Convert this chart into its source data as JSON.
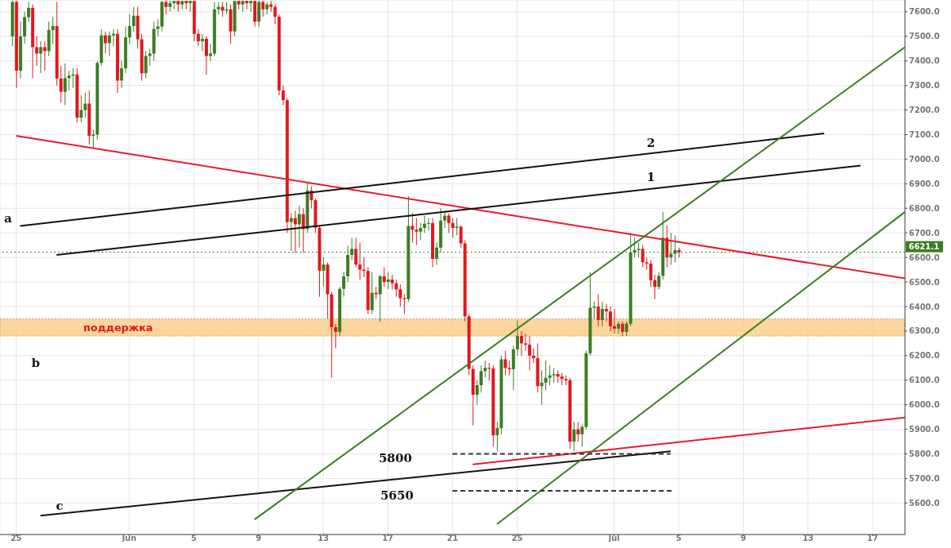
{
  "chart_data": {
    "type": "candlestick",
    "x": [
      "--05-24T18:00",
      "--05-25T00:00",
      "--05-25T06:00",
      "--05-25T12:00",
      "--05-25T18:00",
      "--05-26T00:00",
      "--05-26T06:00",
      "--05-26T12:00",
      "--05-26T18:00",
      "--05-27T00:00",
      "--05-27T06:00",
      "--05-27T12:00",
      "--05-27T18:00",
      "--05-28T00:00",
      "--05-28T06:00",
      "--05-28T12:00",
      "--05-28T18:00",
      "--05-29T00:00",
      "--05-29T06:00",
      "--05-29T12:00",
      "--05-29T18:00",
      "--05-30T00:00",
      "--05-30T06:00",
      "--05-30T12:00",
      "--05-30T18:00",
      "--05-31T00:00",
      "--05-31T06:00",
      "--05-31T12:00",
      "--05-31T18:00",
      "--06-01T00:00",
      "--06-01T06:00",
      "--06-01T12:00",
      "--06-01T18:00",
      "--06-02T00:00",
      "--06-02T06:00",
      "--06-02T12:00",
      "--06-02T18:00",
      "--06-03T00:00",
      "--06-03T06:00",
      "--06-03T12:00",
      "--06-03T18:00",
      "--06-04T00:00",
      "--06-04T06:00",
      "--06-04T12:00",
      "--06-04T18:00",
      "--06-05T00:00",
      "--06-05T06:00",
      "--06-05T12:00",
      "--06-05T18:00",
      "--06-06T00:00",
      "--06-06T06:00",
      "--06-06T12:00",
      "--06-06T18:00",
      "--06-07T00:00",
      "--06-07T06:00",
      "--06-07T12:00",
      "--06-07T18:00",
      "--06-08T00:00",
      "--06-08T06:00",
      "--06-08T12:00",
      "--06-08T18:00",
      "--06-09T00:00",
      "--06-09T06:00",
      "--06-09T12:00",
      "--06-09T18:00",
      "--06-10T00:00",
      "--06-10T06:00",
      "--06-10T12:00",
      "--06-10T18:00",
      "--06-11T00:00",
      "--06-11T06:00",
      "--06-11T12:00",
      "--06-11T18:00",
      "--06-12T00:00",
      "--06-12T06:00",
      "--06-12T12:00",
      "--06-12T18:00",
      "--06-13T00:00",
      "--06-13T06:00",
      "--06-13T12:00",
      "--06-13T18:00",
      "--06-14T00:00",
      "--06-14T06:00",
      "--06-14T12:00",
      "--06-14T18:00",
      "--06-15T00:00",
      "--06-15T06:00",
      "--06-15T12:00",
      "--06-15T18:00",
      "--06-16T00:00",
      "--06-16T06:00",
      "--06-16T12:00",
      "--06-16T18:00",
      "--06-17T00:00",
      "--06-17T06:00",
      "--06-17T12:00",
      "--06-17T18:00",
      "--06-18T00:00",
      "--06-18T06:00",
      "--06-18T12:00",
      "--06-18T18:00",
      "--06-19T00:00",
      "--06-19T06:00",
      "--06-19T12:00",
      "--06-19T18:00",
      "--06-20T00:00",
      "--06-20T06:00",
      "--06-20T12:00",
      "--06-20T18:00",
      "--06-21T00:00",
      "--06-21T06:00",
      "--06-21T12:00",
      "--06-21T18:00",
      "--06-22T00:00",
      "--06-22T06:00",
      "--06-22T12:00",
      "--06-22T18:00",
      "--06-23T00:00",
      "--06-23T06:00",
      "--06-23T12:00",
      "--06-23T18:00",
      "--06-24T00:00",
      "--06-24T06:00",
      "--06-24T12:00",
      "--06-24T18:00",
      "--06-25T00:00",
      "--06-25T06:00",
      "--06-25T12:00",
      "--06-25T18:00",
      "--06-26T00:00",
      "--06-26T06:00",
      "--06-26T12:00",
      "--06-26T18:00",
      "--06-27T00:00",
      "--06-27T06:00",
      "--06-27T12:00",
      "--06-27T18:00",
      "--06-28T00:00",
      "--06-28T06:00",
      "--06-28T12:00",
      "--06-28T18:00",
      "--06-29T00:00",
      "--06-29T06:00",
      "--06-29T12:00",
      "--06-29T18:00",
      "--06-30T00:00",
      "--06-30T06:00",
      "--06-30T12:00",
      "--06-30T18:00",
      "--07-01T00:00",
      "--07-01T06:00",
      "--07-01T12:00",
      "--07-01T18:00",
      "--07-02T00:00",
      "--07-02T06:00",
      "--07-02T12:00",
      "--07-02T18:00",
      "--07-03T00:00",
      "--07-03T06:00",
      "--07-03T12:00",
      "--07-03T18:00",
      "--07-04T00:00",
      "--07-04T06:00",
      "--07-04T12:00",
      "--07-04T18:00",
      "--07-05T00:00"
    ],
    "ohlc": [
      [
        7500,
        7645,
        7460,
        7640
      ],
      [
        7640,
        7645,
        7290,
        7360
      ],
      [
        7360,
        7560,
        7330,
        7500
      ],
      [
        7500,
        7600,
        7470,
        7578
      ],
      [
        7578,
        7640,
        7560,
        7616
      ],
      [
        7616,
        7630,
        7330,
        7456
      ],
      [
        7456,
        7500,
        7380,
        7430
      ],
      [
        7430,
        7480,
        7350,
        7456
      ],
      [
        7456,
        7480,
        7360,
        7440
      ],
      [
        7440,
        7560,
        7420,
        7526
      ],
      [
        7526,
        7580,
        7470,
        7542
      ],
      [
        7542,
        7640,
        7300,
        7328
      ],
      [
        7328,
        7380,
        7230,
        7274
      ],
      [
        7274,
        7390,
        7220,
        7330
      ],
      [
        7330,
        7360,
        7280,
        7340
      ],
      [
        7340,
        7370,
        7290,
        7345
      ],
      [
        7345,
        7370,
        7150,
        7169
      ],
      [
        7169,
        7260,
        7150,
        7200
      ],
      [
        7200,
        7270,
        7170,
        7226
      ],
      [
        7226,
        7280,
        7060,
        7095
      ],
      [
        7095,
        7120,
        7047,
        7100
      ],
      [
        7100,
        7400,
        7080,
        7392
      ],
      [
        7392,
        7530,
        7380,
        7504
      ],
      [
        7504,
        7520,
        7430,
        7472
      ],
      [
        7472,
        7520,
        7420,
        7504
      ],
      [
        7504,
        7530,
        7460,
        7510
      ],
      [
        7510,
        7530,
        7270,
        7320
      ],
      [
        7320,
        7400,
        7290,
        7370
      ],
      [
        7370,
        7540,
        7350,
        7496
      ],
      [
        7496,
        7590,
        7470,
        7542
      ],
      [
        7542,
        7620,
        7520,
        7584
      ],
      [
        7584,
        7620,
        7450,
        7488
      ],
      [
        7488,
        7510,
        7320,
        7350
      ],
      [
        7350,
        7440,
        7330,
        7420
      ],
      [
        7420,
        7450,
        7380,
        7430
      ],
      [
        7430,
        7560,
        7400,
        7530
      ],
      [
        7530,
        7570,
        7500,
        7540
      ],
      [
        7540,
        7645,
        7520,
        7640
      ],
      [
        7640,
        7645,
        7590,
        7620
      ],
      [
        7620,
        7645,
        7600,
        7635
      ],
      [
        7635,
        7645,
        7610,
        7644
      ],
      [
        7644,
        7645,
        7600,
        7630
      ],
      [
        7630,
        7645,
        7610,
        7644
      ],
      [
        7644,
        7645,
        7610,
        7635
      ],
      [
        7635,
        7645,
        7600,
        7644
      ],
      [
        7644,
        7645,
        7480,
        7510
      ],
      [
        7510,
        7530,
        7460,
        7480
      ],
      [
        7480,
        7510,
        7440,
        7490
      ],
      [
        7490,
        7500,
        7344,
        7420
      ],
      [
        7420,
        7470,
        7400,
        7430
      ],
      [
        7430,
        7640,
        7420,
        7610
      ],
      [
        7610,
        7640,
        7590,
        7620
      ],
      [
        7620,
        7640,
        7580,
        7605
      ],
      [
        7605,
        7640,
        7590,
        7610
      ],
      [
        7610,
        7630,
        7470,
        7520
      ],
      [
        7520,
        7645,
        7500,
        7644
      ],
      [
        7644,
        7645,
        7610,
        7630
      ],
      [
        7630,
        7645,
        7600,
        7644
      ],
      [
        7644,
        7645,
        7610,
        7635
      ],
      [
        7635,
        7645,
        7600,
        7644
      ],
      [
        7644,
        7645,
        7540,
        7560
      ],
      [
        7560,
        7645,
        7540,
        7640
      ],
      [
        7640,
        7645,
        7580,
        7610
      ],
      [
        7610,
        7640,
        7590,
        7630
      ],
      [
        7630,
        7645,
        7600,
        7620
      ],
      [
        7620,
        7630,
        7550,
        7580
      ],
      [
        7580,
        7590,
        7260,
        7280
      ],
      [
        7280,
        7300,
        7220,
        7240
      ],
      [
        7240,
        7250,
        6700,
        6744
      ],
      [
        6744,
        6780,
        6626,
        6760
      ],
      [
        6760,
        6790,
        6620,
        6735
      ],
      [
        6735,
        6810,
        6640,
        6776
      ],
      [
        6776,
        6800,
        6620,
        6715
      ],
      [
        6715,
        6903,
        6700,
        6872
      ],
      [
        6872,
        6890,
        6800,
        6833
      ],
      [
        6833,
        6840,
        6700,
        6721
      ],
      [
        6721,
        6730,
        6440,
        6546
      ],
      [
        6546,
        6600,
        6480,
        6571
      ],
      [
        6571,
        6580,
        6350,
        6450
      ],
      [
        6450,
        6460,
        6110,
        6316
      ],
      [
        6316,
        6330,
        6230,
        6297
      ],
      [
        6297,
        6480,
        6280,
        6472
      ],
      [
        6472,
        6540,
        6440,
        6523
      ],
      [
        6523,
        6648,
        6500,
        6610
      ],
      [
        6610,
        6680,
        6590,
        6635
      ],
      [
        6635,
        6680,
        6560,
        6571
      ],
      [
        6571,
        6660,
        6510,
        6550
      ],
      [
        6550,
        6600,
        6520,
        6545
      ],
      [
        6545,
        6560,
        6370,
        6386
      ],
      [
        6386,
        6540,
        6370,
        6456
      ],
      [
        6456,
        6480,
        6430,
        6450
      ],
      [
        6450,
        6530,
        6338,
        6523
      ],
      [
        6523,
        6560,
        6480,
        6500
      ],
      [
        6500,
        6540,
        6470,
        6510
      ],
      [
        6510,
        6530,
        6470,
        6495
      ],
      [
        6495,
        6510,
        6440,
        6470
      ],
      [
        6470,
        6490,
        6400,
        6434
      ],
      [
        6434,
        6450,
        6370,
        6430
      ],
      [
        6430,
        6849,
        6420,
        6728
      ],
      [
        6728,
        6780,
        6660,
        6713
      ],
      [
        6713,
        6760,
        6650,
        6705
      ],
      [
        6705,
        6740,
        6670,
        6720
      ],
      [
        6720,
        6770,
        6700,
        6737
      ],
      [
        6737,
        6760,
        6710,
        6740
      ],
      [
        6740,
        6760,
        6560,
        6594
      ],
      [
        6594,
        6660,
        6570,
        6640
      ],
      [
        6640,
        6800,
        6620,
        6750
      ],
      [
        6750,
        6790,
        6720,
        6770
      ],
      [
        6770,
        6780,
        6700,
        6740
      ],
      [
        6740,
        6760,
        6680,
        6720
      ],
      [
        6720,
        6760,
        6690,
        6725
      ],
      [
        6725,
        6730,
        6640,
        6657
      ],
      [
        6657,
        6670,
        6340,
        6360
      ],
      [
        6360,
        6370,
        6120,
        6146
      ],
      [
        6146,
        6160,
        5916,
        6041
      ],
      [
        6041,
        6100,
        6000,
        6080
      ],
      [
        6080,
        6160,
        6050,
        6137
      ],
      [
        6137,
        6180,
        6110,
        6150
      ],
      [
        6150,
        6170,
        6100,
        6148
      ],
      [
        6148,
        6160,
        5830,
        5876
      ],
      [
        5876,
        5930,
        5810,
        5905
      ],
      [
        5905,
        6200,
        5880,
        6185
      ],
      [
        6185,
        6220,
        6120,
        6150
      ],
      [
        6150,
        6180,
        6120,
        6145
      ],
      [
        6145,
        6240,
        6060,
        6226
      ],
      [
        6226,
        6344,
        6200,
        6280
      ],
      [
        6280,
        6300,
        6200,
        6250
      ],
      [
        6250,
        6290,
        6220,
        6245
      ],
      [
        6245,
        6280,
        6140,
        6200
      ],
      [
        6200,
        6230,
        6170,
        6190
      ],
      [
        6190,
        6250,
        6050,
        6076
      ],
      [
        6076,
        6140,
        6000,
        6090
      ],
      [
        6090,
        6180,
        6060,
        6110
      ],
      [
        6110,
        6160,
        6080,
        6120
      ],
      [
        6120,
        6150,
        6090,
        6125
      ],
      [
        6125,
        6140,
        6090,
        6115
      ],
      [
        6115,
        6130,
        6080,
        6105
      ],
      [
        6105,
        6120,
        6080,
        6100
      ],
      [
        6100,
        6110,
        5820,
        5850
      ],
      [
        5850,
        5930,
        5810,
        5900
      ],
      [
        5900,
        5930,
        5850,
        5880
      ],
      [
        5880,
        5920,
        5830,
        5910
      ],
      [
        5910,
        6220,
        5900,
        6210
      ],
      [
        6210,
        6539,
        6200,
        6395
      ],
      [
        6395,
        6420,
        6350,
        6400
      ],
      [
        6400,
        6450,
        6320,
        6345
      ],
      [
        6345,
        6420,
        6320,
        6390
      ],
      [
        6390,
        6410,
        6340,
        6380
      ],
      [
        6380,
        6400,
        6300,
        6320
      ],
      [
        6320,
        6390,
        6290,
        6310
      ],
      [
        6310,
        6340,
        6290,
        6330
      ],
      [
        6330,
        6340,
        6280,
        6297
      ],
      [
        6297,
        6340,
        6280,
        6330
      ],
      [
        6330,
        6700,
        6320,
        6620
      ],
      [
        6620,
        6680,
        6600,
        6630
      ],
      [
        6630,
        6660,
        6600,
        6635
      ],
      [
        6635,
        6650,
        6560,
        6580
      ],
      [
        6580,
        6600,
        6550,
        6575
      ],
      [
        6575,
        6590,
        6480,
        6507
      ],
      [
        6507,
        6530,
        6430,
        6480
      ],
      [
        6480,
        6540,
        6470,
        6525
      ],
      [
        6525,
        6785,
        6510,
        6680
      ],
      [
        6680,
        6730,
        6560,
        6600
      ],
      [
        6600,
        6700,
        6570,
        6615
      ],
      [
        6615,
        6690,
        6580,
        6630
      ],
      [
        6630,
        6640,
        6600,
        6621.1
      ]
    ],
    "series": [
      {
        "type": "line",
        "x": [
          "--05-25T00:00",
          "--07-19T00:00"
        ],
        "values": [
          7095,
          6515
        ],
        "color": "#e8192c"
      },
      {
        "type": "line",
        "x": [
          "--05-25T06:00",
          "--07-14T00:00"
        ],
        "values": [
          6728,
          7105
        ],
        "color": "#111111"
      },
      {
        "type": "line",
        "x": [
          "--05-27T12:00",
          "--07-16T06:00"
        ],
        "values": [
          6610,
          6974
        ],
        "color": "#111111"
      },
      {
        "type": "line",
        "x": [
          "--05-26T12:00",
          "--07-04T12:00"
        ],
        "values": [
          5549,
          5811
        ],
        "color": "#111111"
      },
      {
        "type": "line",
        "x": [
          "--06-22T06:00",
          "--07-19T00:00"
        ],
        "values": [
          5757,
          5948
        ],
        "color": "#e8192c"
      },
      {
        "type": "line",
        "x": [
          "--06-08T18:00",
          "--07-19T00:00"
        ],
        "values": [
          5533,
          7456
        ],
        "color": "#3b7d23"
      },
      {
        "type": "line",
        "x": [
          "--06-23T18:00",
          "--07-19T00:00"
        ],
        "values": [
          5514,
          6785
        ],
        "color": "#3b7d23"
      },
      {
        "type": "line",
        "x": [
          "--06-21T00:00",
          "--07-04T12:00"
        ],
        "values": [
          5800,
          5800
        ],
        "color": "#333333",
        "line_style": "dashed"
      },
      {
        "type": "line",
        "x": [
          "--06-21T00:00",
          "--07-04T18:00"
        ],
        "values": [
          5650,
          5650
        ],
        "color": "#333333",
        "line_style": "dashed"
      }
    ],
    "xlim": [
      "--05-24T00:00",
      "--07-19T00:00"
    ],
    "xticks": [
      {
        "value": "--05-25",
        "label": "25"
      },
      {
        "value": "--06-01",
        "label": "Jun"
      },
      {
        "value": "--06-05",
        "label": "5"
      },
      {
        "value": "--06-09",
        "label": "9"
      },
      {
        "value": "--06-13",
        "label": "13"
      },
      {
        "value": "--06-17",
        "label": "17"
      },
      {
        "value": "--06-21",
        "label": "21"
      },
      {
        "value": "--06-25",
        "label": "25"
      },
      {
        "value": "--07-01",
        "label": "Jul"
      },
      {
        "value": "--07-05",
        "label": "5"
      },
      {
        "value": "--07-09",
        "label": "9"
      },
      {
        "value": "--07-13",
        "label": "13"
      },
      {
        "value": "--07-17",
        "label": "17"
      }
    ],
    "ylim": [
      5472,
      7648
    ],
    "yticks": [
      {
        "value": 5600,
        "label": "5600.0"
      },
      {
        "value": 5700,
        "label": "5700.0"
      },
      {
        "value": 5800,
        "label": "5800.0"
      },
      {
        "value": 5900,
        "label": "5900.0"
      },
      {
        "value": 6000,
        "label": "6000.0"
      },
      {
        "value": 6100,
        "label": "6100.0"
      },
      {
        "value": 6200,
        "label": "6200.0"
      },
      {
        "value": 6300,
        "label": "6300.0"
      },
      {
        "value": 6400,
        "label": "6400.0"
      },
      {
        "value": 6500,
        "label": "6500.0"
      },
      {
        "value": 6600,
        "label": "6600.0"
      },
      {
        "value": 6700,
        "label": "6700.0"
      },
      {
        "value": 6800,
        "label": "6800.0"
      },
      {
        "value": 6900,
        "label": "6900.0"
      },
      {
        "value": 7000,
        "label": "7000.0"
      },
      {
        "value": 7100,
        "label": "7100.0"
      },
      {
        "value": 7200,
        "label": "7200.0"
      },
      {
        "value": 7300,
        "label": "7300.0"
      },
      {
        "value": 7400,
        "label": "7400.0"
      },
      {
        "value": 7500,
        "label": "7500.0"
      },
      {
        "value": 7600,
        "label": "7600.0"
      }
    ],
    "grid": true,
    "ref_lines": [
      {
        "axis": "y",
        "value": 6621.1,
        "label": "6621.1",
        "color": "#3b7d23",
        "line_style": "dotted"
      }
    ],
    "bands": [
      {
        "axis": "y",
        "from": 6280,
        "to": 6350,
        "label": "поддержка",
        "color": "#fbc77f"
      }
    ],
    "annotations": [
      "a",
      "b",
      "c",
      "1",
      "2",
      "5800",
      "5650"
    ]
  }
}
